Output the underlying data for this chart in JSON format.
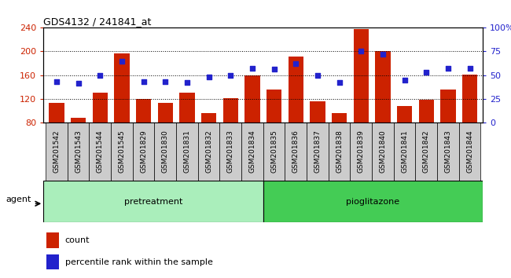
{
  "title": "GDS4132 / 241841_at",
  "samples": [
    "GSM201542",
    "GSM201543",
    "GSM201544",
    "GSM201545",
    "GSM201829",
    "GSM201830",
    "GSM201831",
    "GSM201832",
    "GSM201833",
    "GSM201834",
    "GSM201835",
    "GSM201836",
    "GSM201837",
    "GSM201838",
    "GSM201839",
    "GSM201840",
    "GSM201841",
    "GSM201842",
    "GSM201843",
    "GSM201844"
  ],
  "counts": [
    113,
    88,
    130,
    196,
    119,
    113,
    130,
    96,
    121,
    160,
    135,
    192,
    116,
    96,
    238,
    200,
    108,
    118,
    136,
    161
  ],
  "percentile": [
    43,
    41,
    50,
    65,
    43,
    43,
    42,
    48,
    50,
    57,
    56,
    62,
    50,
    42,
    75,
    72,
    45,
    53,
    57,
    57
  ],
  "pretreatment_count": 10,
  "pioglitazone_count": 10,
  "ylim_left": [
    80,
    240
  ],
  "ylim_right": [
    0,
    100
  ],
  "yticks_left": [
    80,
    120,
    160,
    200,
    240
  ],
  "yticks_right": [
    0,
    25,
    50,
    75,
    100
  ],
  "bar_color": "#cc2200",
  "dot_color": "#2222cc",
  "pretreatment_color": "#aaeebb",
  "pioglitazone_color": "#44cc55",
  "agent_label": "agent",
  "legend_count": "count",
  "legend_percentile": "percentile rank within the sample",
  "label_bg": "#cccccc",
  "plot_bg": "#ffffff",
  "fig_bg": "#ffffff"
}
